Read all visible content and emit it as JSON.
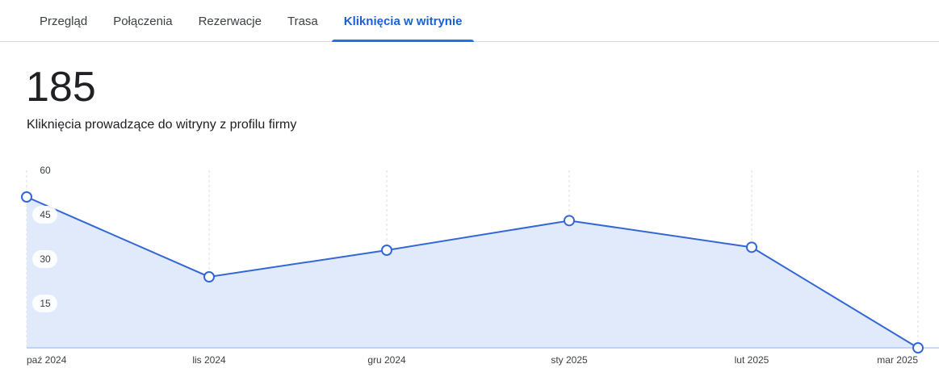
{
  "tabs": [
    "Przegląd",
    "Połączenia",
    "Rezerwacje",
    "Trasa",
    "Kliknięcia w witrynie"
  ],
  "active_tab": 4,
  "total": "185",
  "description": "Kliknięcia prowadzące do witryny z profilu firmy",
  "chart_data": {
    "type": "line",
    "categories": [
      "paź 2024",
      "lis 2024",
      "gru 2024",
      "sty 2025",
      "lut 2025",
      "mar 2025"
    ],
    "values": [
      51,
      24,
      33,
      43,
      34,
      0
    ],
    "color": "#3367d6",
    "fill": "#e1eafa",
    "ylim": [
      0,
      60
    ],
    "yticks": [
      15,
      30,
      45,
      60
    ]
  }
}
